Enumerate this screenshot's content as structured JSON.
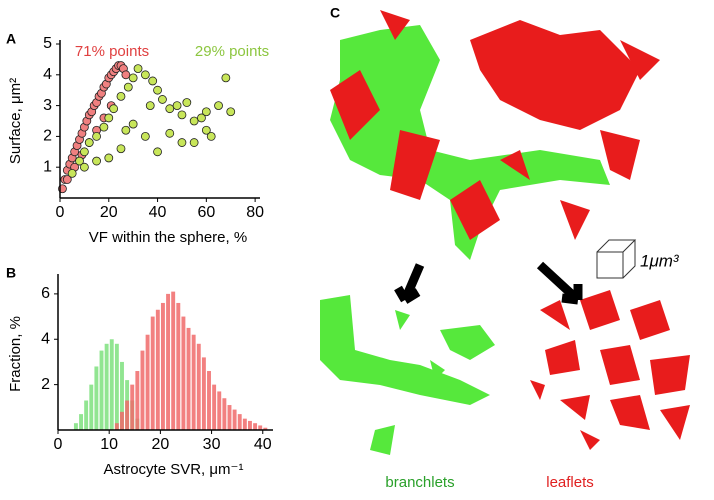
{
  "chart_data": [
    {
      "type": "scatter",
      "panel": "A",
      "xlabel": "VF within the sphere, %",
      "ylabel": "Surface, μm²",
      "xlim": [
        0,
        82
      ],
      "xticks": [
        0,
        20,
        40,
        60,
        80
      ],
      "ylim": [
        0,
        5
      ],
      "yticks": [
        1,
        2,
        3,
        4,
        5
      ],
      "series": [
        {
          "name": "71% points",
          "color": "#f08080",
          "x": [
            1,
            2,
            3,
            4,
            5,
            6,
            7,
            8,
            9,
            10,
            11,
            12,
            13,
            14,
            15,
            16,
            17,
            18,
            19,
            20,
            21,
            22,
            23,
            24,
            25,
            26,
            27,
            3,
            6,
            9,
            12,
            15,
            18,
            21
          ],
          "y": [
            0.3,
            0.6,
            0.9,
            1.1,
            1.3,
            1.5,
            1.7,
            1.9,
            2.1,
            2.3,
            2.5,
            2.7,
            2.8,
            3.0,
            3.1,
            3.3,
            3.4,
            3.6,
            3.7,
            3.9,
            4.0,
            4.1,
            4.2,
            4.3,
            4.3,
            4.2,
            4.0,
            0.6,
            1.0,
            1.4,
            1.8,
            2.2,
            2.6,
            3.0
          ]
        },
        {
          "name": "29% points",
          "color": "#c8e65a",
          "x": [
            5,
            8,
            10,
            12,
            15,
            18,
            20,
            22,
            25,
            28,
            30,
            32,
            35,
            38,
            40,
            42,
            45,
            48,
            50,
            52,
            55,
            58,
            60,
            62,
            65,
            68,
            70,
            15,
            25,
            35,
            45,
            55,
            30,
            40,
            50,
            20,
            60,
            10,
            27,
            37
          ],
          "y": [
            0.8,
            1.2,
            1.5,
            1.8,
            2.0,
            2.3,
            2.6,
            2.9,
            3.3,
            3.6,
            3.9,
            4.2,
            4.0,
            3.8,
            3.5,
            3.2,
            2.9,
            3.0,
            2.7,
            3.1,
            2.5,
            2.6,
            2.8,
            2.0,
            3.0,
            3.9,
            2.8,
            1.2,
            1.6,
            2.0,
            2.1,
            1.8,
            2.4,
            1.5,
            1.8,
            1.3,
            2.2,
            1.0,
            2.2,
            3.0
          ]
        }
      ]
    },
    {
      "type": "histogram",
      "panel": "B",
      "xlabel": "Astrocyte SVR, μm⁻¹",
      "ylabel": "Fraction, %",
      "xlim": [
        0,
        42
      ],
      "xticks": [
        0,
        10,
        20,
        30,
        40
      ],
      "ylim": [
        0,
        6.7
      ],
      "yticks": [
        2,
        4,
        6
      ],
      "series": [
        {
          "color": "#7ee07e",
          "bins": [
            3,
            4,
            5,
            6,
            7,
            8,
            9,
            10,
            11,
            12,
            13,
            14,
            15,
            16
          ],
          "values": [
            0.3,
            0.7,
            1.3,
            2.0,
            2.8,
            3.5,
            3.8,
            4.0,
            3.8,
            3.0,
            2.2,
            1.3,
            0.5
          ]
        },
        {
          "color": "#f06a6a",
          "bins": [
            11,
            12,
            13,
            14,
            15,
            16,
            17,
            18,
            19,
            20,
            21,
            22,
            23,
            24,
            25,
            26,
            27,
            28,
            29,
            30,
            31,
            32,
            33,
            34,
            35,
            36,
            37,
            38,
            39,
            40,
            41
          ],
          "values": [
            0.3,
            0.8,
            1.3,
            2.0,
            2.6,
            3.5,
            4.2,
            5.0,
            5.3,
            5.6,
            6.0,
            6.1,
            5.6,
            5.0,
            4.5,
            4.2,
            3.8,
            3.2,
            2.6,
            2.0,
            1.7,
            1.4,
            1.1,
            0.9,
            0.7,
            0.5,
            0.4,
            0.3,
            0.2,
            0.1
          ]
        }
      ]
    }
  ],
  "panel_c": {
    "panel": "C",
    "scale": "1μm³",
    "left_label": "branchlets",
    "right_label": "leaflets"
  }
}
